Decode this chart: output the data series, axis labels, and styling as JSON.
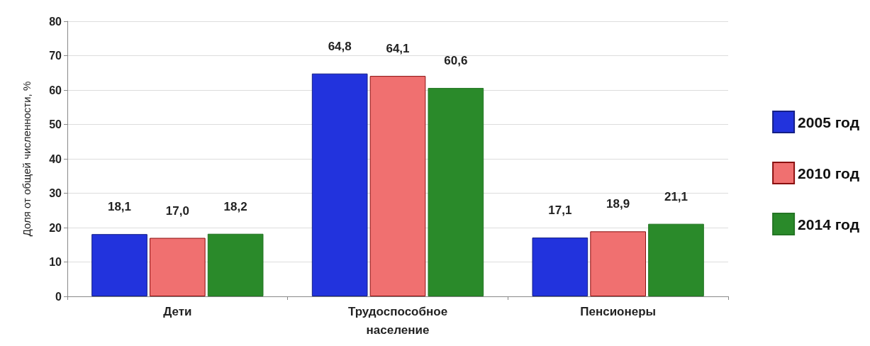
{
  "chart_data": {
    "type": "bar",
    "ylabel": "Доля от общей численности, %",
    "categories": [
      "Дети",
      "Трудоспособное население",
      "Пенсионеры"
    ],
    "series": [
      {
        "name": "2005 год",
        "color": "#2233dd",
        "values": [
          18.1,
          64.8,
          17.1
        ],
        "value_labels": [
          "18,1",
          "64,8",
          "17,1"
        ]
      },
      {
        "name": "2010 год",
        "color": "#f07070",
        "values": [
          17.0,
          64.1,
          18.9
        ],
        "value_labels": [
          "17,0",
          "64,1",
          "18,9"
        ]
      },
      {
        "name": "2014 год",
        "color": "#2a8a2a",
        "values": [
          18.2,
          60.6,
          21.1
        ],
        "value_labels": [
          "18,2",
          "60,6",
          "21,1"
        ]
      }
    ],
    "ylim": [
      0,
      80
    ],
    "yticks": [
      0,
      10,
      20,
      30,
      40,
      50,
      60,
      70,
      80
    ],
    "grid": "y",
    "legend": "right"
  }
}
